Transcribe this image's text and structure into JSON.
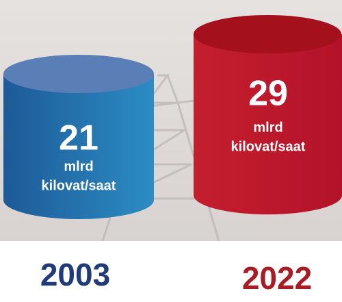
{
  "items": [
    {
      "value": 21,
      "unit": "mlrd",
      "unit2": "kilovat/saat",
      "year": "2003"
    },
    {
      "value": 29,
      "unit": "mlrd",
      "unit2": "kilovat/saat",
      "year": "2022"
    }
  ]
}
